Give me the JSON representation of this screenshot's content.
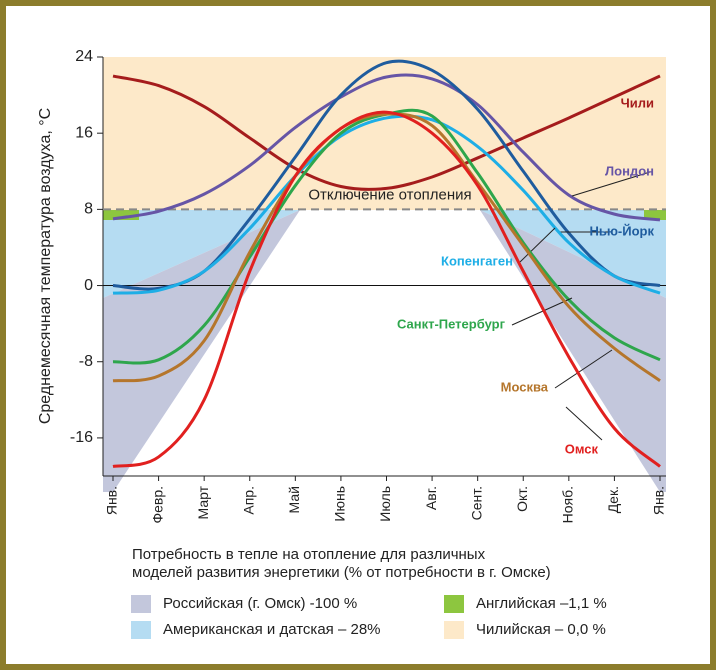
{
  "chart_data": {
    "type": "line",
    "y_label": "Среднемесячная температура воздуха, °C",
    "categories": [
      "Янв.",
      "Февр.",
      "Март",
      "Апр.",
      "Май",
      "Июнь",
      "Июль",
      "Авг.",
      "Сент.",
      "Окт.",
      "Нояб.",
      "Дек.",
      "Янв."
    ],
    "ylim": [
      -20,
      24
    ],
    "yticks": [
      24,
      16,
      8,
      0,
      -8,
      -16
    ],
    "heating_off": {
      "label": "Отключение отопления",
      "value": 8
    },
    "series": [
      {
        "name": "Чили",
        "color": "#a51c1c",
        "values": [
          22,
          21,
          18.8,
          15.5,
          12.3,
          10.4,
          10.2,
          11.4,
          13.4,
          15.5,
          17.6,
          19.8,
          22
        ]
      },
      {
        "name": "Лондон",
        "color": "#6655a6",
        "values": [
          7,
          7.8,
          9.6,
          12.6,
          16.6,
          19.8,
          21.9,
          21.7,
          19,
          14,
          9.5,
          7.5,
          6.9
        ]
      },
      {
        "name": "Нью-Йорк",
        "color": "#1f5c9e",
        "values": [
          0,
          -0.3,
          1.5,
          7,
          13.5,
          20,
          23.4,
          22.6,
          18.5,
          12,
          5.5,
          1,
          0
        ]
      },
      {
        "name": "Копенгаген",
        "color": "#1eaee6",
        "values": [
          -0.8,
          -0.5,
          1.5,
          6,
          11.5,
          15.7,
          17.6,
          17.4,
          14.6,
          10,
          4.5,
          1,
          -0.8
        ]
      },
      {
        "name": "Санкт-Петербург",
        "color": "#2ea64c",
        "values": [
          -8,
          -7.8,
          -4.2,
          3,
          10.5,
          16,
          18,
          17.8,
          11.8,
          4.5,
          -1.5,
          -5.5,
          -7.8
        ]
      },
      {
        "name": "Москва",
        "color": "#b5762c",
        "values": [
          -10,
          -9.5,
          -5.8,
          3.5,
          11.5,
          16.5,
          18,
          16.8,
          10.8,
          4.2,
          -2.2,
          -6.6,
          -10
        ]
      },
      {
        "name": "Омск",
        "color": "#e1201f",
        "values": [
          -19,
          -18,
          -12,
          1.5,
          11.5,
          16.5,
          18.2,
          16,
          10.5,
          1.5,
          -7.5,
          -15,
          -19
        ]
      }
    ],
    "legend_title": [
      "Потребность в тепле на отопление для различных",
      "моделей развития энергетики  (% от потребности в г. Омске)"
    ],
    "legend": [
      {
        "label": "Российская (г. Омск) -100 %",
        "color": "#c3c7dc"
      },
      {
        "label": "Английская –1,1 %",
        "color": "#8dc63f"
      },
      {
        "label": "Американская и датская – 28%",
        "color": "#b5dcf2"
      },
      {
        "label": "Чилийская – 0,0 %",
        "color": "#fde9c9"
      }
    ]
  }
}
